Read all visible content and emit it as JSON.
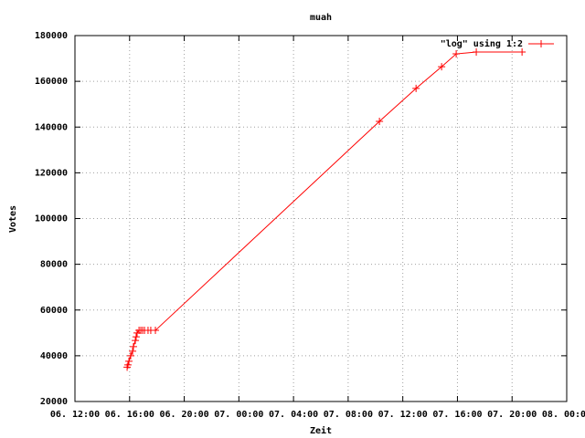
{
  "chart_data": {
    "type": "line",
    "title": "muah",
    "x_label": "Zeit",
    "y_label": "Votes",
    "x": [
      15.82,
      15.88,
      15.95,
      16.08,
      16.22,
      16.28,
      16.42,
      16.48,
      16.55,
      16.69,
      16.82,
      16.95,
      17.09,
      17.35,
      17.55,
      17.89,
      34.29,
      36.97,
      38.84,
      39.91,
      41.38,
      44.73
    ],
    "series": [
      {
        "name": "\"log\" using 1:2",
        "color": "#ff0000",
        "values": [
          35000,
          36000,
          37600,
          40000,
          42000,
          44000,
          46700,
          48300,
          50000,
          51100,
          51100,
          51100,
          51100,
          51100,
          51100,
          51100,
          142500,
          156900,
          166400,
          172000,
          172800,
          172800
        ]
      }
    ],
    "xlim": [
      12,
      48
    ],
    "xticks": [
      {
        "value": 12,
        "label": "06. 12:00"
      },
      {
        "value": 16,
        "label": "06. 16:00"
      },
      {
        "value": 20,
        "label": "06. 20:00"
      },
      {
        "value": 24,
        "label": "07. 00:00"
      },
      {
        "value": 28,
        "label": "07. 04:00"
      },
      {
        "value": 32,
        "label": "07. 08:00"
      },
      {
        "value": 36,
        "label": "07. 12:00"
      },
      {
        "value": 40,
        "label": "07. 16:00"
      },
      {
        "value": 44,
        "label": "07. 20:00"
      },
      {
        "value": 48,
        "label": "08. 00:00"
      }
    ],
    "ylim": [
      20000,
      180000
    ],
    "yticks": [
      20000,
      40000,
      60000,
      80000,
      100000,
      120000,
      140000,
      160000,
      180000
    ],
    "grid": true,
    "legend": "top-right"
  }
}
